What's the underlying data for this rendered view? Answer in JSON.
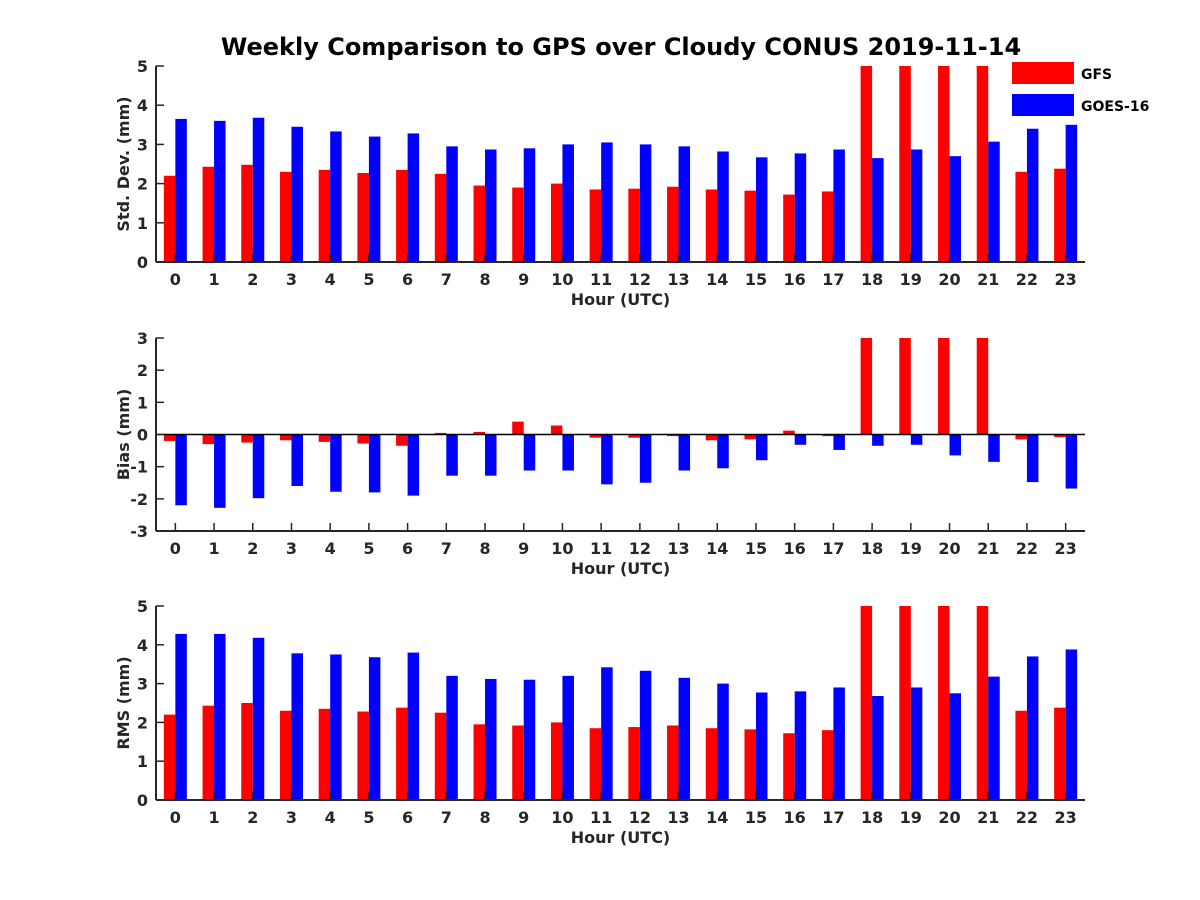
{
  "title": "Weekly Comparison to GPS over Cloudy CONUS 2019-11-14",
  "legend": [
    {
      "name": "GFS",
      "color": "#ff0000"
    },
    {
      "name": "GOES-16",
      "color": "#0000ff"
    }
  ],
  "chart_data": [
    {
      "id": "stddev",
      "type": "bar",
      "ylabel": "Std. Dev. (mm)",
      "xlabel": "Hour (UTC)",
      "ylim": [
        0,
        5
      ],
      "yticks": [
        0,
        1,
        2,
        3,
        4,
        5
      ],
      "categories": [
        "0",
        "1",
        "2",
        "3",
        "4",
        "5",
        "6",
        "7",
        "8",
        "9",
        "10",
        "11",
        "12",
        "13",
        "14",
        "15",
        "16",
        "17",
        "18",
        "19",
        "20",
        "21",
        "22",
        "23"
      ],
      "series": [
        {
          "name": "GFS",
          "color": "#ff0000",
          "values": [
            2.2,
            2.43,
            2.48,
            2.3,
            2.35,
            2.27,
            2.35,
            2.25,
            1.95,
            1.9,
            2.0,
            1.85,
            1.87,
            1.92,
            1.85,
            1.82,
            1.72,
            1.8,
            5,
            5,
            5,
            5,
            2.3,
            2.38
          ],
          "clipped_top": [
            false,
            false,
            false,
            false,
            false,
            false,
            false,
            false,
            false,
            false,
            false,
            false,
            false,
            false,
            false,
            false,
            false,
            false,
            true,
            true,
            true,
            true,
            false,
            false
          ]
        },
        {
          "name": "GOES-16",
          "color": "#0000ff",
          "values": [
            3.65,
            3.6,
            3.68,
            3.45,
            3.33,
            3.2,
            3.28,
            2.95,
            2.87,
            2.9,
            3.0,
            3.05,
            3.0,
            2.95,
            2.82,
            2.67,
            2.77,
            2.87,
            2.65,
            2.87,
            2.7,
            3.07,
            3.4,
            3.5
          ]
        }
      ]
    },
    {
      "id": "bias",
      "type": "bar",
      "ylabel": "Bias (mm)",
      "xlabel": "Hour (UTC)",
      "ylim": [
        -3,
        3
      ],
      "yticks": [
        -3,
        -2,
        -1,
        0,
        1,
        2,
        3
      ],
      "zero_line": true,
      "categories": [
        "0",
        "1",
        "2",
        "3",
        "4",
        "5",
        "6",
        "7",
        "8",
        "9",
        "10",
        "11",
        "12",
        "13",
        "14",
        "15",
        "16",
        "17",
        "18",
        "19",
        "20",
        "21",
        "22",
        "23"
      ],
      "series": [
        {
          "name": "GFS",
          "color": "#ff0000",
          "values": [
            -0.2,
            -0.3,
            -0.25,
            -0.18,
            -0.23,
            -0.28,
            -0.35,
            0.05,
            0.08,
            0.4,
            0.28,
            -0.1,
            -0.1,
            -0.05,
            -0.18,
            -0.15,
            0.12,
            -0.05,
            3,
            3,
            3,
            3,
            -0.15,
            -0.08
          ]
        },
        {
          "name": "GOES-16",
          "color": "#0000ff",
          "values": [
            -2.2,
            -2.28,
            -1.98,
            -1.6,
            -1.78,
            -1.8,
            -1.9,
            -1.28,
            -1.28,
            -1.12,
            -1.12,
            -1.55,
            -1.5,
            -1.12,
            -1.05,
            -0.8,
            -0.32,
            -0.48,
            -0.35,
            -0.32,
            -0.65,
            -0.85,
            -1.48,
            -1.68
          ]
        }
      ]
    },
    {
      "id": "rms",
      "type": "bar",
      "ylabel": "RMS (mm)",
      "xlabel": "Hour (UTC)",
      "ylim": [
        0,
        5
      ],
      "yticks": [
        0,
        1,
        2,
        3,
        4,
        5
      ],
      "categories": [
        "0",
        "1",
        "2",
        "3",
        "4",
        "5",
        "6",
        "7",
        "8",
        "9",
        "10",
        "11",
        "12",
        "13",
        "14",
        "15",
        "16",
        "17",
        "18",
        "19",
        "20",
        "21",
        "22",
        "23"
      ],
      "series": [
        {
          "name": "GFS",
          "color": "#ff0000",
          "values": [
            2.2,
            2.43,
            2.5,
            2.3,
            2.35,
            2.28,
            2.38,
            2.25,
            1.95,
            1.92,
            2.0,
            1.85,
            1.88,
            1.92,
            1.85,
            1.82,
            1.72,
            1.8,
            5,
            5,
            5,
            5,
            2.3,
            2.38
          ]
        },
        {
          "name": "GOES-16",
          "color": "#0000ff",
          "values": [
            4.28,
            4.28,
            4.18,
            3.78,
            3.75,
            3.68,
            3.8,
            3.2,
            3.12,
            3.1,
            3.2,
            3.42,
            3.33,
            3.15,
            3.0,
            2.77,
            2.8,
            2.9,
            2.68,
            2.9,
            2.75,
            3.18,
            3.7,
            3.88
          ]
        }
      ]
    }
  ]
}
